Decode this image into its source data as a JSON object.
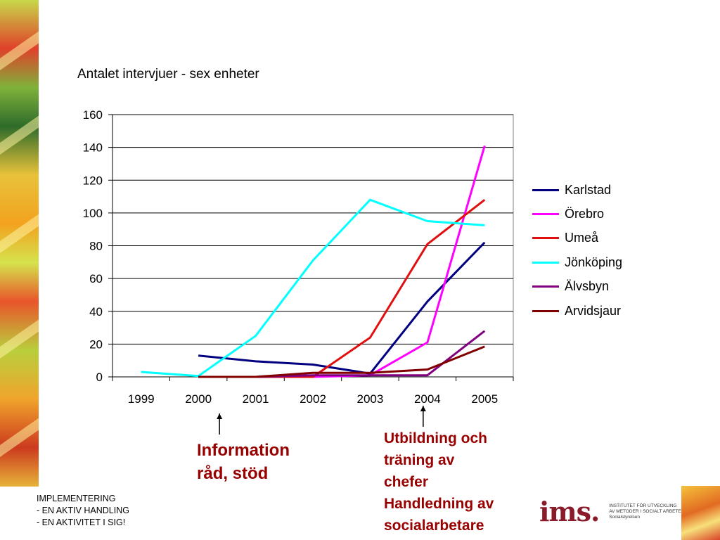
{
  "chart_data": {
    "type": "line",
    "title": "Antalet intervjuer - sex enheter",
    "categories": [
      "1999",
      "2000",
      "2001",
      "2002",
      "2003",
      "2004",
      "2005"
    ],
    "ylim": [
      0,
      160
    ],
    "yticks": [
      0,
      20,
      40,
      60,
      80,
      100,
      120,
      140,
      160
    ],
    "grid": true,
    "legend_position": "right",
    "series": [
      {
        "name": "Karlstad",
        "color": "#000080",
        "values": [
          null,
          13,
          9.5,
          7.5,
          2,
          46,
          82
        ]
      },
      {
        "name": "Örebro",
        "color": "#ff00ff",
        "values": [
          null,
          0,
          0,
          0,
          1,
          21,
          141
        ]
      },
      {
        "name": "Umeå",
        "color": "#e01010",
        "values": [
          null,
          0,
          0,
          0,
          24,
          81,
          108
        ]
      },
      {
        "name": "Jönköping",
        "color": "#00ffff",
        "values": [
          3,
          0.5,
          25,
          71,
          108,
          95,
          92.5
        ]
      },
      {
        "name": "Älvsbyn",
        "color": "#800080",
        "values": [
          null,
          0,
          0,
          1,
          1,
          1,
          28
        ]
      },
      {
        "name": "Arvidsjaur",
        "color": "#800000",
        "values": [
          null,
          0,
          0,
          2.5,
          2.5,
          4.5,
          18.5
        ]
      }
    ]
  },
  "annotations": {
    "left_note": "Information\nråd, stöd",
    "right_note": "Utbildning och\nträning av\nchefer\nHandledning av\nsocialarbetare"
  },
  "footer": {
    "text": "IMPLEMENTERING\n- EN AKTIV HANDLING\n- EN AKTIVITET I SIG!"
  },
  "logo": {
    "mark": "ims",
    "dot": ".",
    "text": "INSTITUTET FÖR UTVECKLING\nAV METODER I SOCIALT ARBETE\nSocialstyrelsen"
  }
}
